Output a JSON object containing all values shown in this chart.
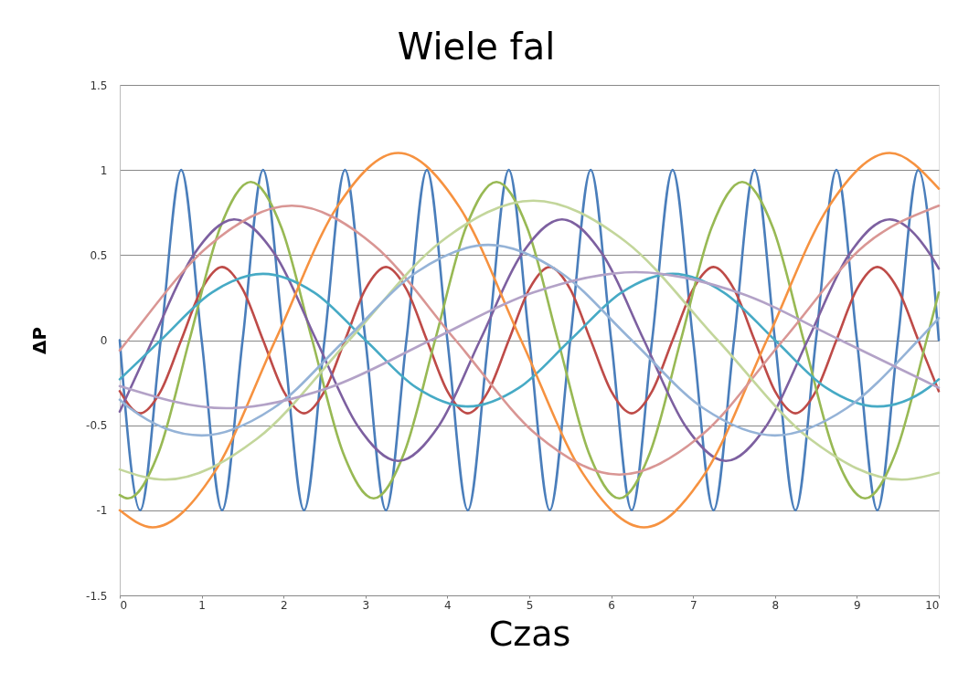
{
  "chart_data": {
    "type": "line",
    "title": "Wiele fal",
    "xlabel": "Czas",
    "ylabel": "ΔP",
    "xlim": [
      0,
      10
    ],
    "xticks": [
      0,
      1,
      2,
      3,
      4,
      5,
      6,
      7,
      8,
      9,
      10
    ],
    "ylim": [
      -1.5,
      1.5
    ],
    "yticks": [
      -1.5,
      -1,
      -0.5,
      0,
      0.5,
      1,
      1.5
    ],
    "grid": "y",
    "legend": false,
    "marker": "none",
    "line_style": "solid",
    "series": [
      {
        "color": "#4a7ebb",
        "x": [
          0,
          0.25,
          0.5,
          0.75,
          1,
          1.25,
          1.5,
          1.75,
          2,
          2.25,
          2.5,
          2.75,
          3,
          3.25,
          3.5,
          3.75,
          4,
          4.25,
          4.5,
          4.75,
          5,
          5.25,
          5.5,
          5.75,
          6,
          6.25,
          6.5,
          6.75,
          7,
          7.25,
          7.5,
          7.75,
          8,
          8.25,
          8.5,
          8.75,
          9,
          9.25,
          9.5,
          9.75,
          10
        ],
        "values": [
          0,
          -1,
          0,
          1,
          0,
          -1,
          0,
          1,
          0,
          -1,
          0,
          1,
          0,
          -1,
          0,
          1,
          0,
          -1,
          0,
          1,
          0,
          -1,
          0,
          1,
          0,
          -1,
          0,
          1,
          0,
          -1,
          0,
          1,
          0,
          -1,
          0,
          1,
          0,
          -1,
          0,
          1,
          0
        ]
      },
      {
        "color": "#be4b48",
        "x": [
          0,
          0.25,
          0.5,
          0.75,
          1,
          1.25,
          1.5,
          1.75,
          2,
          2.25,
          2.5,
          2.75,
          3,
          3.25,
          3.5,
          3.75,
          4,
          4.25,
          4.5,
          4.75,
          5,
          5.25,
          5.5,
          5.75,
          6,
          6.25,
          6.5,
          6.75,
          7,
          7.25,
          7.5,
          7.75,
          8,
          8.25,
          8.5,
          8.75,
          9,
          9.25,
          9.5,
          9.75,
          10
        ],
        "values": [
          -0.3,
          -0.43,
          -0.3,
          0,
          0.3,
          0.43,
          0.3,
          0,
          -0.3,
          -0.43,
          -0.3,
          0,
          0.3,
          0.43,
          0.3,
          0,
          -0.3,
          -0.43,
          -0.3,
          0,
          0.3,
          0.43,
          0.3,
          0,
          -0.3,
          -0.43,
          -0.3,
          0,
          0.3,
          0.43,
          0.3,
          0,
          -0.3,
          -0.43,
          -0.3,
          0,
          0.3,
          0.43,
          0.3,
          0,
          -0.3
        ]
      },
      {
        "color": "#98b954",
        "x": [
          0,
          0.1,
          0.475,
          0.85,
          1.225,
          1.6,
          1.975,
          2.35,
          2.725,
          3.1,
          3.475,
          3.85,
          4.225,
          4.6,
          4.975,
          5.35,
          5.725,
          6.1,
          6.475,
          6.85,
          7.225,
          7.6,
          7.975,
          8.35,
          8.725,
          9.1,
          9.475,
          9.85,
          10
        ],
        "values": [
          -0.91,
          -0.93,
          -0.66,
          0,
          0.66,
          0.93,
          0.66,
          0,
          -0.66,
          -0.93,
          -0.66,
          0,
          0.66,
          0.93,
          0.66,
          0,
          -0.66,
          -0.93,
          -0.66,
          0,
          0.66,
          0.93,
          0.66,
          0,
          -0.66,
          -0.93,
          -0.66,
          0,
          0.28
        ]
      },
      {
        "color": "#7d60a0",
        "x": [
          0,
          0.4,
          0.9,
          1.4,
          1.9,
          2.4,
          2.9,
          3.4,
          3.9,
          4.4,
          4.9,
          5.4,
          5.9,
          6.4,
          6.9,
          7.4,
          7.9,
          8.4,
          8.9,
          9.4,
          9.9,
          10
        ],
        "values": [
          -0.42,
          0,
          0.5,
          0.71,
          0.5,
          0,
          -0.5,
          -0.71,
          -0.5,
          0,
          0.5,
          0.71,
          0.5,
          0,
          -0.5,
          -0.71,
          -0.5,
          0,
          0.5,
          0.71,
          0.5,
          0.42
        ]
      },
      {
        "color": "#46aac5",
        "x": [
          0,
          0.5,
          1.125,
          1.75,
          2.375,
          3,
          3.625,
          4.25,
          4.875,
          5.5,
          6.125,
          6.75,
          7.375,
          8,
          8.625,
          9.25,
          9.875,
          10
        ],
        "values": [
          -0.23,
          0,
          0.28,
          0.39,
          0.28,
          0,
          -0.28,
          -0.39,
          -0.28,
          0,
          0.28,
          0.39,
          0.28,
          0,
          -0.28,
          -0.39,
          -0.28,
          -0.23
        ]
      },
      {
        "color": "#f69240",
        "x": [
          0,
          0.4,
          1.15,
          1.9,
          2.65,
          3.4,
          4.15,
          4.9,
          5.65,
          6.4,
          7.15,
          7.9,
          8.65,
          9.4,
          10
        ],
        "values": [
          -1.0,
          -1.1,
          -0.78,
          0,
          0.78,
          1.1,
          0.78,
          0,
          -0.78,
          -1.1,
          -0.78,
          0,
          0.78,
          1.1,
          0.89
        ]
      },
      {
        "color": "#d99694",
        "x": [
          0,
          0.1,
          1.1,
          2.1,
          3.1,
          4.1,
          5.1,
          6.1,
          7.1,
          8.1,
          9.1,
          10
        ],
        "values": [
          -0.06,
          0,
          0.56,
          0.79,
          0.56,
          0,
          -0.56,
          -0.79,
          -0.56,
          0,
          0.56,
          0.79
        ]
      },
      {
        "color": "#c3d69b",
        "x": [
          0,
          0.55,
          1.675,
          2.8,
          3.925,
          5.05,
          6.175,
          7.3,
          8.425,
          9.55,
          10
        ],
        "values": [
          -0.76,
          -0.82,
          -0.58,
          0,
          0.58,
          0.82,
          0.58,
          0,
          -0.58,
          -0.82,
          -0.78
        ]
      },
      {
        "color": "#95b3d7",
        "x": [
          0,
          0.125,
          1,
          1.875,
          2.75,
          3.625,
          4.5,
          5.375,
          6.25,
          7.125,
          8,
          8.875,
          9.75,
          10
        ],
        "values": [
          -0.35,
          -0.4,
          -0.56,
          -0.4,
          0,
          0.4,
          0.56,
          0.4,
          0,
          -0.4,
          -0.56,
          -0.4,
          0,
          0.13
        ]
      },
      {
        "color": "#b3a2c7",
        "x": [
          0,
          1.3,
          2.55,
          3.8,
          5.05,
          6.3,
          7.55,
          8.8,
          10
        ],
        "values": [
          -0.27,
          -0.4,
          -0.28,
          0,
          0.28,
          0.4,
          0.28,
          0,
          -0.28
        ]
      }
    ]
  }
}
